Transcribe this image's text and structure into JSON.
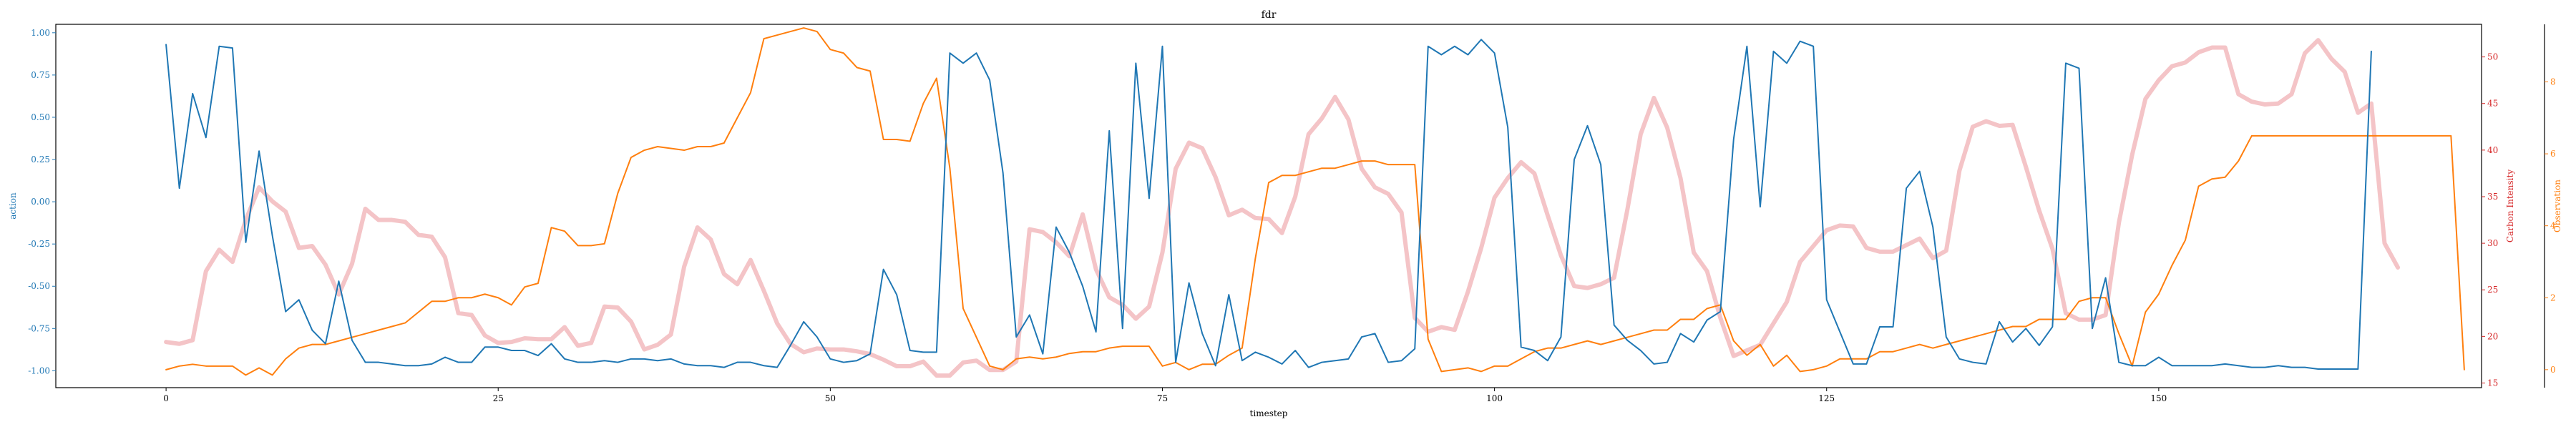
{
  "chart_data": {
    "type": "line",
    "title": "fdr",
    "xlabel": "timestep",
    "xlim": [
      -8.3,
      174.3
    ],
    "x_ticks": [
      0,
      25,
      50,
      75,
      100,
      125,
      150
    ],
    "grid": false,
    "axes": [
      {
        "id": "action",
        "side": "left",
        "label": "action",
        "color": "#1f77b4",
        "ylim": [
          -1.1,
          1.05
        ],
        "ticks": [
          "-1.00",
          "-0.75",
          "-0.50",
          "-0.25",
          "0.00",
          "0.25",
          "0.50",
          "0.75",
          "1.00"
        ],
        "tick_values": [
          -1.0,
          -0.75,
          -0.5,
          -0.25,
          0.0,
          0.25,
          0.5,
          0.75,
          1.0
        ]
      },
      {
        "id": "carbon",
        "side": "right",
        "label": "Carbon Intensity",
        "color": "#d62728",
        "ylim": [
          14.5,
          53.5
        ],
        "ticks": [
          "15",
          "20",
          "25",
          "30",
          "35",
          "40",
          "45",
          "50"
        ],
        "tick_values": [
          15,
          20,
          25,
          30,
          35,
          40,
          45,
          50
        ]
      },
      {
        "id": "observation",
        "side": "right-outer",
        "label": "Observation",
        "color": "#ff7f0e",
        "ylim": [
          -0.5,
          9.6
        ],
        "ticks": [
          "0",
          "2",
          "4",
          "6",
          "8"
        ],
        "tick_values": [
          0,
          2,
          4,
          6,
          8
        ]
      }
    ],
    "series": [
      {
        "axis": "action",
        "color": "#1f77b4",
        "values": [
          0.93,
          0.08,
          0.64,
          0.38,
          0.92,
          0.91,
          -0.24,
          0.3,
          -0.2,
          -0.65,
          -0.58,
          -0.76,
          -0.84,
          -0.47,
          -0.82,
          -0.95,
          -0.95,
          -0.96,
          -0.97,
          -0.97,
          -0.96,
          -0.92,
          -0.95,
          -0.95,
          -0.86,
          -0.86,
          -0.88,
          -0.88,
          -0.91,
          -0.84,
          -0.93,
          -0.95,
          -0.95,
          -0.94,
          -0.95,
          -0.93,
          -0.93,
          -0.94,
          -0.93,
          -0.96,
          -0.97,
          -0.97,
          -0.98,
          -0.95,
          -0.95,
          -0.97,
          -0.98,
          -0.85,
          -0.71,
          -0.8,
          -0.93,
          -0.95,
          -0.94,
          -0.9,
          -0.4,
          -0.55,
          -0.88,
          -0.89,
          -0.89,
          0.88,
          0.82,
          0.88,
          0.72,
          0.17,
          -0.8,
          -0.67,
          -0.9,
          -0.15,
          -0.3,
          -0.5,
          -0.77,
          0.42,
          -0.75,
          0.82,
          0.02,
          0.92,
          -0.95,
          -0.48,
          -0.78,
          -0.97,
          -0.55,
          -0.94,
          -0.89,
          -0.92,
          -0.96,
          -0.88,
          -0.98,
          -0.95,
          -0.94,
          -0.93,
          -0.8,
          -0.78,
          -0.95,
          -0.94,
          -0.87,
          0.92,
          0.87,
          0.92,
          0.87,
          0.96,
          0.88,
          0.44,
          -0.86,
          -0.88,
          -0.94,
          -0.8,
          0.25,
          0.45,
          0.22,
          -0.73,
          -0.82,
          -0.88,
          -0.96,
          -0.95,
          -0.78,
          -0.83,
          -0.7,
          -0.65,
          0.37,
          0.92,
          -0.03,
          0.89,
          0.82,
          0.95,
          0.92,
          -0.58,
          -0.77,
          -0.96,
          -0.96,
          -0.74,
          -0.74,
          0.08,
          0.18,
          -0.15,
          -0.8,
          -0.93,
          -0.95,
          -0.96,
          -0.71,
          -0.83,
          -0.75,
          -0.85,
          -0.74,
          0.82,
          0.79,
          -0.75,
          -0.45,
          -0.95,
          -0.97,
          -0.97,
          -0.92,
          -0.97,
          -0.97,
          -0.97,
          -0.97,
          -0.96,
          -0.97,
          -0.98,
          -0.98,
          -0.97,
          -0.98,
          -0.98,
          -0.99,
          -0.99,
          -0.99,
          -0.99,
          0.89
        ]
      },
      {
        "axis": "carbon",
        "color": "#f4c4c7",
        "values": [
          19.4,
          19.2,
          19.6,
          27.0,
          29.3,
          28.0,
          32.5,
          36.0,
          34.5,
          33.4,
          29.5,
          29.7,
          27.7,
          24.5,
          27.8,
          33.7,
          32.5,
          32.5,
          32.3,
          30.9,
          30.7,
          28.5,
          22.5,
          22.3,
          20.1,
          19.3,
          19.4,
          19.8,
          19.7,
          19.7,
          21.0,
          19.0,
          19.3,
          23.2,
          23.1,
          21.6,
          18.6,
          19.1,
          20.2,
          27.5,
          31.7,
          30.4,
          26.7,
          25.6,
          28.2,
          24.9,
          21.4,
          19.2,
          18.3,
          18.7,
          18.6,
          18.6,
          18.4,
          18.1,
          17.5,
          16.8,
          16.8,
          17.3,
          15.8,
          15.8,
          17.2,
          17.4,
          16.4,
          16.4,
          17.3,
          31.5,
          31.2,
          30.1,
          28.6,
          33.1,
          27.2,
          24.2,
          23.4,
          21.9,
          23.2,
          29.0,
          38.0,
          40.8,
          40.2,
          37.1,
          33.0,
          33.6,
          32.7,
          32.6,
          31.1,
          35.0,
          41.7,
          43.4,
          45.7,
          43.3,
          38.0,
          36.0,
          35.3,
          33.3,
          22.0,
          20.5,
          21.0,
          20.7,
          24.8,
          29.5,
          34.9,
          37.0,
          38.7,
          37.5,
          33.0,
          28.7,
          25.4,
          25.2,
          25.6,
          26.3,
          33.6,
          41.7,
          45.6,
          42.4,
          37.0,
          29.0,
          27.0,
          22.0,
          17.9,
          18.5,
          19.1,
          21.4,
          23.7,
          28.0,
          29.7,
          31.4,
          31.9,
          31.8,
          29.5,
          29.1,
          29.1,
          29.8,
          30.5,
          28.4,
          29.2,
          37.8,
          42.5,
          43.1,
          42.6,
          42.7,
          38.2,
          33.5,
          29.4,
          22.5,
          21.8,
          21.8,
          22.3,
          32.2,
          39.5,
          45.5,
          47.5,
          49.0,
          49.4,
          50.5,
          51.0,
          51.0,
          46.0,
          45.2,
          44.9,
          45.0,
          46.0,
          50.4,
          51.8,
          49.8,
          48.4,
          44.0,
          45.0,
          30.0,
          27.4
        ]
      },
      {
        "axis": "observation",
        "color": "#ff7f0e",
        "values": [
          0.0,
          0.1,
          0.15,
          0.1,
          0.1,
          0.1,
          -0.15,
          0.05,
          -0.15,
          0.3,
          0.6,
          0.7,
          0.7,
          0.8,
          0.9,
          1.0,
          1.1,
          1.2,
          1.3,
          1.6,
          1.9,
          1.9,
          2.0,
          2.0,
          2.1,
          2.0,
          1.8,
          2.3,
          2.4,
          3.95,
          3.85,
          3.45,
          3.45,
          3.5,
          4.9,
          5.9,
          6.1,
          6.2,
          6.15,
          6.1,
          6.2,
          6.2,
          6.3,
          7.0,
          7.7,
          9.2,
          9.3,
          9.4,
          9.5,
          9.4,
          8.9,
          8.8,
          8.4,
          8.3,
          6.4,
          6.4,
          6.35,
          7.4,
          8.1,
          5.6,
          1.7,
          0.9,
          0.1,
          0.0,
          0.3,
          0.35,
          0.3,
          0.35,
          0.45,
          0.5,
          0.5,
          0.6,
          0.65,
          0.65,
          0.65,
          0.1,
          0.2,
          0.0,
          0.15,
          0.15,
          0.4,
          0.6,
          3.1,
          5.2,
          5.4,
          5.4,
          5.5,
          5.6,
          5.6,
          5.7,
          5.8,
          5.8,
          5.7,
          5.7,
          5.7,
          0.85,
          -0.05,
          0.0,
          0.05,
          -0.05,
          0.1,
          0.1,
          0.3,
          0.5,
          0.6,
          0.6,
          0.7,
          0.8,
          0.7,
          0.8,
          0.9,
          1.0,
          1.1,
          1.1,
          1.4,
          1.4,
          1.7,
          1.8,
          0.8,
          0.4,
          0.7,
          0.1,
          0.4,
          -0.05,
          0.0,
          0.1,
          0.3,
          0.3,
          0.3,
          0.5,
          0.5,
          0.6,
          0.7,
          0.6,
          0.7,
          0.8,
          0.9,
          1.0,
          1.1,
          1.2,
          1.2,
          1.4,
          1.4,
          1.4,
          1.9,
          2.0,
          2.0,
          1.0,
          0.1,
          1.6,
          2.1,
          2.9,
          3.6,
          5.1,
          5.3,
          5.35,
          5.8,
          6.5,
          6.5,
          6.5,
          6.5,
          6.5,
          6.5,
          6.5,
          6.5,
          6.5,
          6.5,
          6.5,
          6.5,
          6.5,
          6.5,
          6.5,
          6.5,
          0.0
        ]
      }
    ]
  }
}
